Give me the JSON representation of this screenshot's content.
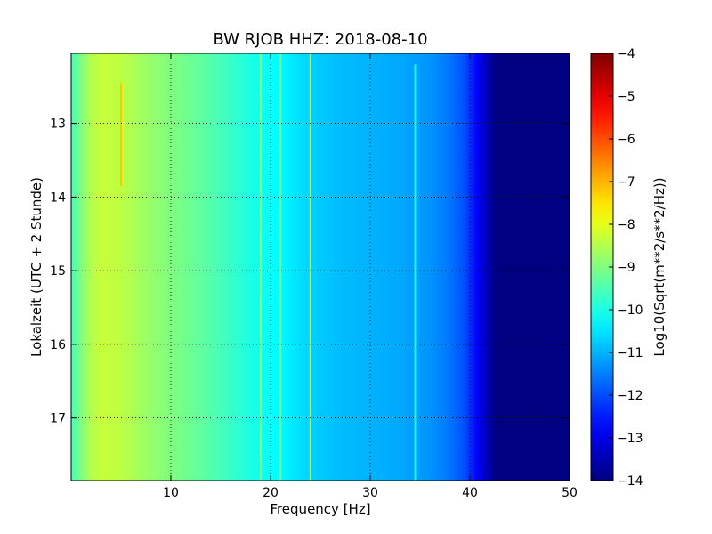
{
  "chart_data": {
    "type": "heatmap",
    "title": "BW RJOB HHZ: 2018-08-10",
    "xlabel": "Frequency [Hz]",
    "ylabel": "Lokalzeit (UTC + 2 Stunde)",
    "xlim": [
      0,
      50
    ],
    "ylim": [
      12.05,
      17.85
    ],
    "y_inverted": true,
    "grid": true,
    "x_ticks": [
      10,
      20,
      30,
      40,
      50
    ],
    "y_ticks": [
      13,
      14,
      15,
      16,
      17
    ],
    "colormap": "jet",
    "colorbar": {
      "label": "Log10(Sqrt(m**2/s**2/Hz))",
      "range": [
        -14,
        -4
      ],
      "ticks": [
        -4,
        -5,
        -6,
        -7,
        -8,
        -9,
        -10,
        -11,
        -12,
        -13,
        -14
      ]
    },
    "spectrum_profile": [
      {
        "f": 0,
        "v": -9.6
      },
      {
        "f": 1,
        "v": -9.0
      },
      {
        "f": 2,
        "v": -8.5
      },
      {
        "f": 3,
        "v": -8.3
      },
      {
        "f": 5,
        "v": -8.4
      },
      {
        "f": 8,
        "v": -8.8
      },
      {
        "f": 10,
        "v": -9.0
      },
      {
        "f": 13,
        "v": -9.3
      },
      {
        "f": 16,
        "v": -9.7
      },
      {
        "f": 18,
        "v": -10.0
      },
      {
        "f": 21,
        "v": -10.3
      },
      {
        "f": 24,
        "v": -10.7
      },
      {
        "f": 27,
        "v": -10.9
      },
      {
        "f": 30,
        "v": -11.0
      },
      {
        "f": 33,
        "v": -11.1
      },
      {
        "f": 36,
        "v": -11.3
      },
      {
        "f": 38,
        "v": -11.6
      },
      {
        "f": 39.5,
        "v": -12.0
      },
      {
        "f": 40.5,
        "v": -12.6
      },
      {
        "f": 41.5,
        "v": -13.3
      },
      {
        "f": 42.5,
        "v": -13.9
      },
      {
        "f": 43,
        "v": -14.0
      },
      {
        "f": 50,
        "v": -14.0
      }
    ],
    "spectral_lines": [
      {
        "f": 5.0,
        "v": -7.2,
        "t_start": 12.45,
        "t_end": 13.85
      },
      {
        "f": 19.0,
        "v": -9.0,
        "t_start": 12.05,
        "t_end": 17.85
      },
      {
        "f": 21.0,
        "v": -9.0,
        "t_start": 12.05,
        "t_end": 17.85
      },
      {
        "f": 24.0,
        "v": -8.6,
        "t_start": 12.05,
        "t_end": 17.85
      },
      {
        "f": 34.5,
        "v": -10.2,
        "t_start": 12.2,
        "t_end": 17.85
      }
    ]
  }
}
